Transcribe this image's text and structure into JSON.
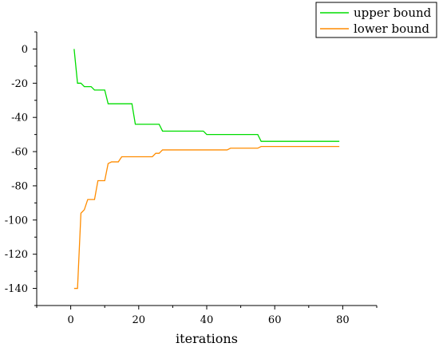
{
  "chart_data": {
    "type": "line",
    "title": "",
    "xlabel": "iterations",
    "ylabel": "",
    "xlim": [
      -10,
      90
    ],
    "ylim": [
      -150,
      10
    ],
    "xticks": [
      0,
      20,
      40,
      60,
      80
    ],
    "yticks": [
      0,
      -20,
      -40,
      -60,
      -80,
      -100,
      -120,
      -140
    ],
    "grid": false,
    "legend_position": "top-right",
    "series": [
      {
        "name": "upper bound",
        "color": "#00dd00",
        "step": true,
        "points": [
          [
            1,
            0
          ],
          [
            2,
            -20
          ],
          [
            3,
            -20
          ],
          [
            4,
            -22
          ],
          [
            6,
            -22
          ],
          [
            7,
            -24
          ],
          [
            8,
            -24
          ],
          [
            10,
            -24
          ],
          [
            11,
            -32
          ],
          [
            15,
            -32
          ],
          [
            18,
            -32
          ],
          [
            19,
            -44
          ],
          [
            26,
            -44
          ],
          [
            27,
            -48
          ],
          [
            30,
            -48
          ],
          [
            39,
            -48
          ],
          [
            40,
            -50
          ],
          [
            50,
            -50
          ],
          [
            55,
            -50
          ],
          [
            56,
            -54
          ],
          [
            65,
            -54
          ],
          [
            79,
            -54
          ]
        ]
      },
      {
        "name": "lower bound",
        "color": "#ff8c00",
        "step": true,
        "points": [
          [
            1,
            -140
          ],
          [
            2,
            -140
          ],
          [
            3,
            -96
          ],
          [
            4,
            -94
          ],
          [
            5,
            -88
          ],
          [
            7,
            -88
          ],
          [
            8,
            -77
          ],
          [
            10,
            -77
          ],
          [
            11,
            -67
          ],
          [
            12,
            -66
          ],
          [
            14,
            -66
          ],
          [
            15,
            -63
          ],
          [
            24,
            -63
          ],
          [
            25,
            -61
          ],
          [
            26,
            -61
          ],
          [
            27,
            -59
          ],
          [
            30,
            -59
          ],
          [
            46,
            -59
          ],
          [
            47,
            -58
          ],
          [
            55,
            -58
          ],
          [
            56,
            -57
          ],
          [
            65,
            -57
          ],
          [
            79,
            -57
          ]
        ]
      }
    ]
  }
}
